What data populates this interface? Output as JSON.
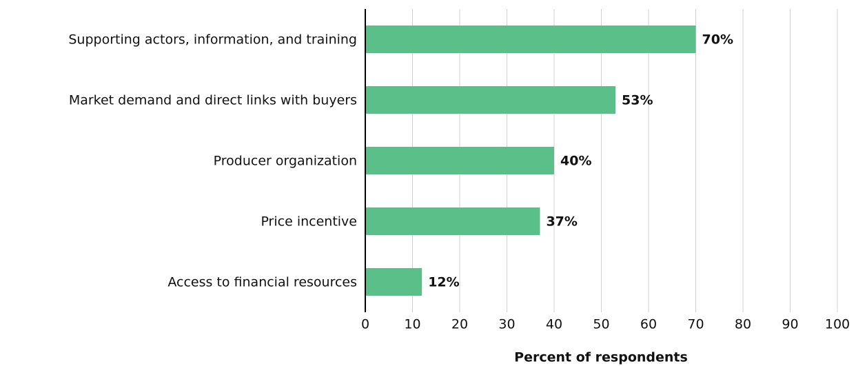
{
  "chart_data": {
    "type": "barh",
    "categories": [
      "Supporting actors, information, and training",
      "Market demand and direct links with buyers",
      "Producer organization",
      "Price incentive",
      "Access to financial resources"
    ],
    "values": [
      70,
      53,
      40,
      37,
      12
    ],
    "value_labels": [
      "70%",
      "53%",
      "40%",
      "37%",
      "12%"
    ],
    "color": "#5bbf8a",
    "x_label": "Percent of respondents",
    "xlim": [
      0,
      100
    ],
    "xticks": [
      0,
      10,
      20,
      30,
      40,
      50,
      60,
      70,
      80,
      90,
      100
    ],
    "grid": true
  }
}
